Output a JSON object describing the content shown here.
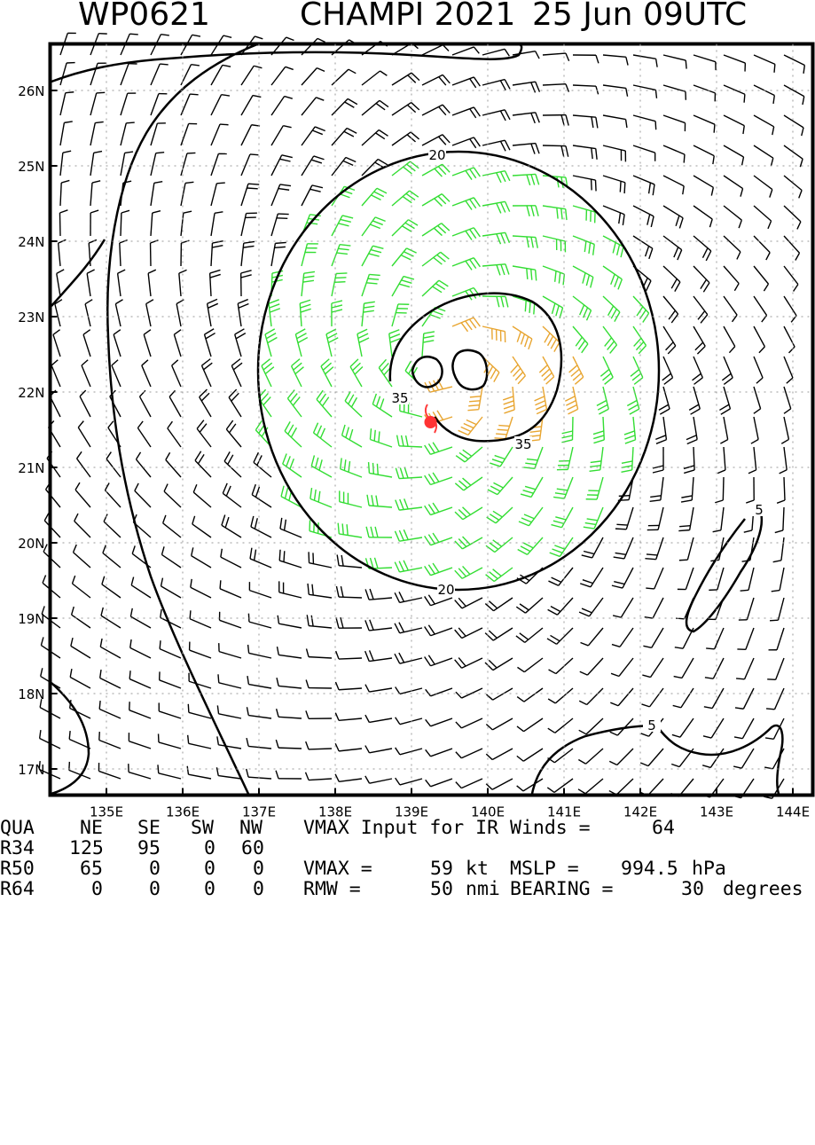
{
  "title": {
    "storm_id": "WP0621",
    "storm_name_year": "CHAMPI 2021",
    "datetime": "25 Jun 09UTC"
  },
  "map": {
    "lat_labels": [
      "26N",
      "25N",
      "24N",
      "23N",
      "22N",
      "21N",
      "20N",
      "19N",
      "18N",
      "17N"
    ],
    "lon_labels": [
      "135E",
      "136E",
      "137E",
      "138E",
      "139E",
      "140E",
      "141E",
      "142E",
      "143E",
      "144E"
    ],
    "lat_range": [
      16.6,
      26.6
    ],
    "lon_range": [
      134.2,
      144.2
    ],
    "storm_center": {
      "lon": 139.25,
      "lat": 21.6
    },
    "contour_labels": [
      "20",
      "20",
      "35",
      "35",
      "5",
      "5"
    ],
    "colors": {
      "wind_34_50": "#33dd33",
      "wind_50_64": "#e8a530",
      "wind_64": "#ff3b3b",
      "base": "#000000",
      "center": "#ff3333"
    }
  },
  "table": {
    "header": {
      "label": "QUA",
      "ne": "NE",
      "se": "SE",
      "sw": "SW",
      "nw": "NW"
    },
    "rows": [
      {
        "label": "R34",
        "ne": "125",
        "se": "95",
        "sw": "0",
        "nw": "60"
      },
      {
        "label": "R50",
        "ne": "65",
        "se": "0",
        "sw": "0",
        "nw": "0"
      },
      {
        "label": "R64",
        "ne": "0",
        "se": "0",
        "sw": "0",
        "nw": "0"
      }
    ]
  },
  "stats": {
    "vmax_input_text": "VMAX Input for IR Winds =",
    "vmax_input_value": "64",
    "vmax_text": "VMAX =",
    "vmax_value": "59",
    "vmax_unit": "kt",
    "mslp_text": "MSLP =",
    "mslp_value": "994.5",
    "mslp_unit": "hPa",
    "rmw_text": "RMW =",
    "rmw_value": "50",
    "rmw_unit": "nmi",
    "bearing_text": "BEARING =",
    "bearing_value": "30",
    "bearing_unit": "degrees"
  }
}
